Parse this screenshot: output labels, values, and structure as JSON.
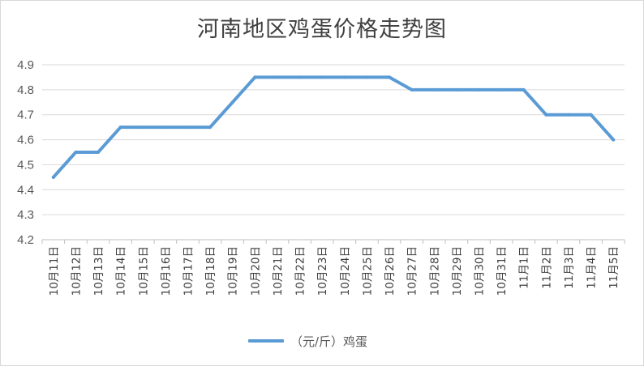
{
  "chart_data": {
    "type": "line",
    "title": "河南地区鸡蛋价格走势图",
    "categories": [
      "10月11日",
      "10月12日",
      "10月13日",
      "10月14日",
      "10月15日",
      "10月16日",
      "10月17日",
      "10月18日",
      "10月19日",
      "10月20日",
      "10月21日",
      "10月22日",
      "10月23日",
      "10月24日",
      "10月25日",
      "10月26日",
      "10月27日",
      "10月28日",
      "10月29日",
      "10月30日",
      "10月31日",
      "11月1日",
      "11月2日",
      "11月3日",
      "11月4日",
      "11月5日"
    ],
    "series": [
      {
        "name": "（元/斤）鸡蛋",
        "color": "#5b9bd5",
        "values": [
          4.45,
          4.55,
          4.55,
          4.65,
          4.65,
          4.65,
          4.65,
          4.65,
          4.75,
          4.85,
          4.85,
          4.85,
          4.85,
          4.85,
          4.85,
          4.85,
          4.8,
          4.8,
          4.8,
          4.8,
          4.8,
          4.8,
          4.7,
          4.7,
          4.7,
          4.6
        ]
      }
    ],
    "ylim": [
      4.2,
      4.9
    ],
    "yticks": [
      "4.2",
      "4.3",
      "4.4",
      "4.5",
      "4.6",
      "4.7",
      "4.8",
      "4.9"
    ],
    "grid": true,
    "legend": "bottom"
  }
}
